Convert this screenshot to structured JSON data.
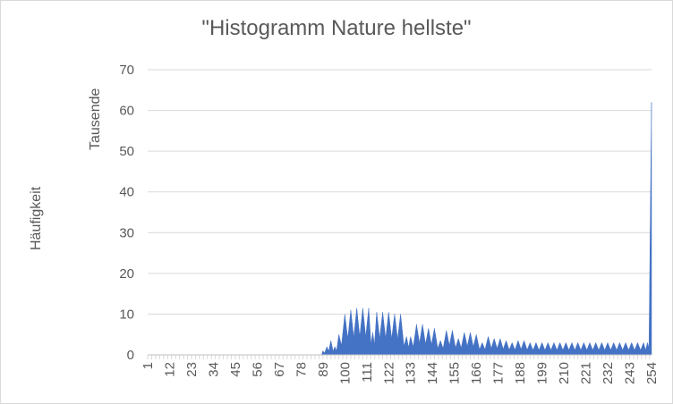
{
  "chart_data": {
    "type": "area",
    "title": "\"Histogramm Nature hellste\"",
    "unit_label": "Tausende",
    "ylabel": "Häufigkeit",
    "xlabel": "",
    "ylim": [
      0,
      70
    ],
    "yticks": [
      0,
      10,
      20,
      30,
      40,
      50,
      60,
      70
    ],
    "xlim": [
      1,
      254
    ],
    "xticks": [
      1,
      12,
      23,
      34,
      45,
      56,
      67,
      78,
      89,
      100,
      111,
      122,
      133,
      144,
      155,
      166,
      177,
      188,
      199,
      210,
      221,
      232,
      243,
      254
    ],
    "grid": true,
    "legend": "none",
    "color": "#4472c4",
    "peaks": [
      {
        "x": 89,
        "y": 1
      },
      {
        "x": 91,
        "y": 2
      },
      {
        "x": 93,
        "y": 3.5
      },
      {
        "x": 95,
        "y": 2
      },
      {
        "x": 97,
        "y": 5
      },
      {
        "x": 100,
        "y": 10
      },
      {
        "x": 103,
        "y": 11
      },
      {
        "x": 106,
        "y": 11.5
      },
      {
        "x": 109,
        "y": 11.5
      },
      {
        "x": 112,
        "y": 11.5
      },
      {
        "x": 114,
        "y": 5.5
      },
      {
        "x": 116,
        "y": 10.5
      },
      {
        "x": 119,
        "y": 10.5
      },
      {
        "x": 122,
        "y": 10.5
      },
      {
        "x": 125,
        "y": 10
      },
      {
        "x": 128,
        "y": 10
      },
      {
        "x": 131,
        "y": 4.5
      },
      {
        "x": 133,
        "y": 4.5
      },
      {
        "x": 136,
        "y": 7.5
      },
      {
        "x": 139,
        "y": 7.5
      },
      {
        "x": 142,
        "y": 6.5
      },
      {
        "x": 145,
        "y": 6.5
      },
      {
        "x": 148,
        "y": 3.5
      },
      {
        "x": 151,
        "y": 6
      },
      {
        "x": 154,
        "y": 6
      },
      {
        "x": 157,
        "y": 4
      },
      {
        "x": 160,
        "y": 5.5
      },
      {
        "x": 163,
        "y": 5.5
      },
      {
        "x": 166,
        "y": 5
      },
      {
        "x": 169,
        "y": 3
      },
      {
        "x": 172,
        "y": 4.5
      },
      {
        "x": 175,
        "y": 4
      },
      {
        "x": 178,
        "y": 4
      },
      {
        "x": 181,
        "y": 3.5
      },
      {
        "x": 184,
        "y": 3
      },
      {
        "x": 187,
        "y": 3.5
      },
      {
        "x": 190,
        "y": 3.5
      },
      {
        "x": 193,
        "y": 3
      },
      {
        "x": 196,
        "y": 3
      },
      {
        "x": 199,
        "y": 3
      },
      {
        "x": 202,
        "y": 3
      },
      {
        "x": 205,
        "y": 3
      },
      {
        "x": 208,
        "y": 3
      },
      {
        "x": 211,
        "y": 3
      },
      {
        "x": 214,
        "y": 3
      },
      {
        "x": 217,
        "y": 3
      },
      {
        "x": 220,
        "y": 3
      },
      {
        "x": 223,
        "y": 3
      },
      {
        "x": 226,
        "y": 3
      },
      {
        "x": 229,
        "y": 3
      },
      {
        "x": 232,
        "y": 3
      },
      {
        "x": 235,
        "y": 3
      },
      {
        "x": 238,
        "y": 3
      },
      {
        "x": 241,
        "y": 3
      },
      {
        "x": 244,
        "y": 3
      },
      {
        "x": 247,
        "y": 3
      },
      {
        "x": 250,
        "y": 3
      },
      {
        "x": 252,
        "y": 3
      },
      {
        "x": 254,
        "y": 62
      }
    ]
  }
}
